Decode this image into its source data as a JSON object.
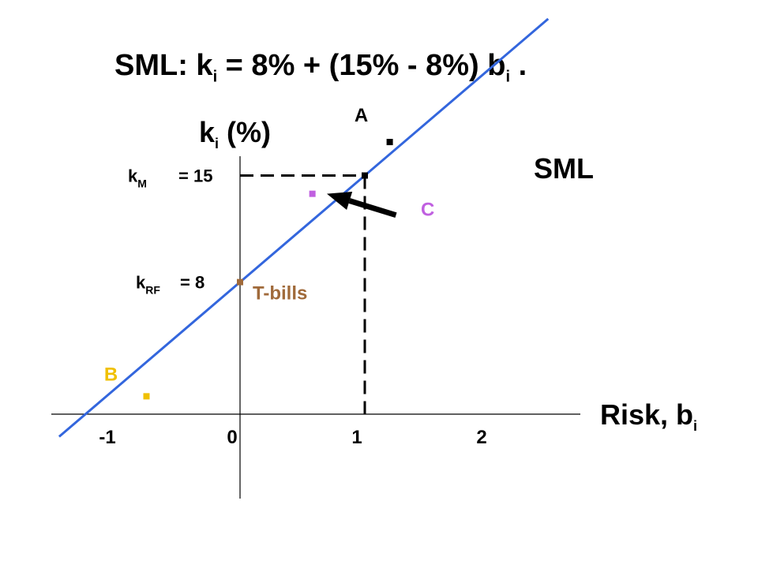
{
  "title": {
    "prefix": "SML:  k",
    "sub1": "i",
    "middle": " = 8% + (15% - 8%) b",
    "sub2": "i",
    "suffix": " ."
  },
  "chart_data": {
    "type": "line",
    "xlabel": {
      "main": "Risk, b",
      "sub": "i"
    },
    "ylabel": {
      "main": "k",
      "sub": "i",
      "rest": " (%)"
    },
    "xticks": [
      -1,
      0,
      1,
      2
    ],
    "xlim": [
      -1.5,
      2.5
    ],
    "ylim": [
      -6,
      28
    ],
    "line": {
      "name": "SML",
      "intercept": 8,
      "slope": 7,
      "x_range": [
        -1.5,
        2.5
      ],
      "color": "#3366dd"
    },
    "reference_lines": {
      "market": {
        "x": 1,
        "y": 15,
        "label_main": "k",
        "label_sub": "M",
        "label_value": "= 15"
      },
      "risk_free": {
        "y": 8,
        "label_main": "k",
        "label_sub": "RF",
        "label_value": "=   8"
      }
    },
    "points": [
      {
        "label": "A",
        "x": 1.2,
        "y": 17.2,
        "color": "#000000"
      },
      {
        "label": "",
        "x": 1.0,
        "y": 15.0,
        "color": "#000000"
      },
      {
        "label": "C",
        "x": 0.58,
        "y": 13.8,
        "color": "#c060e0"
      },
      {
        "label": "T-bills",
        "x": 0.0,
        "y": 8.0,
        "color": "#a06a3a"
      },
      {
        "label": "B",
        "x": -0.75,
        "y": 0.5,
        "color": "#f0c000"
      }
    ],
    "arrow": {
      "from": [
        1.25,
        12.4
      ],
      "to": [
        0.62,
        13.8
      ],
      "color": "#000000"
    }
  }
}
